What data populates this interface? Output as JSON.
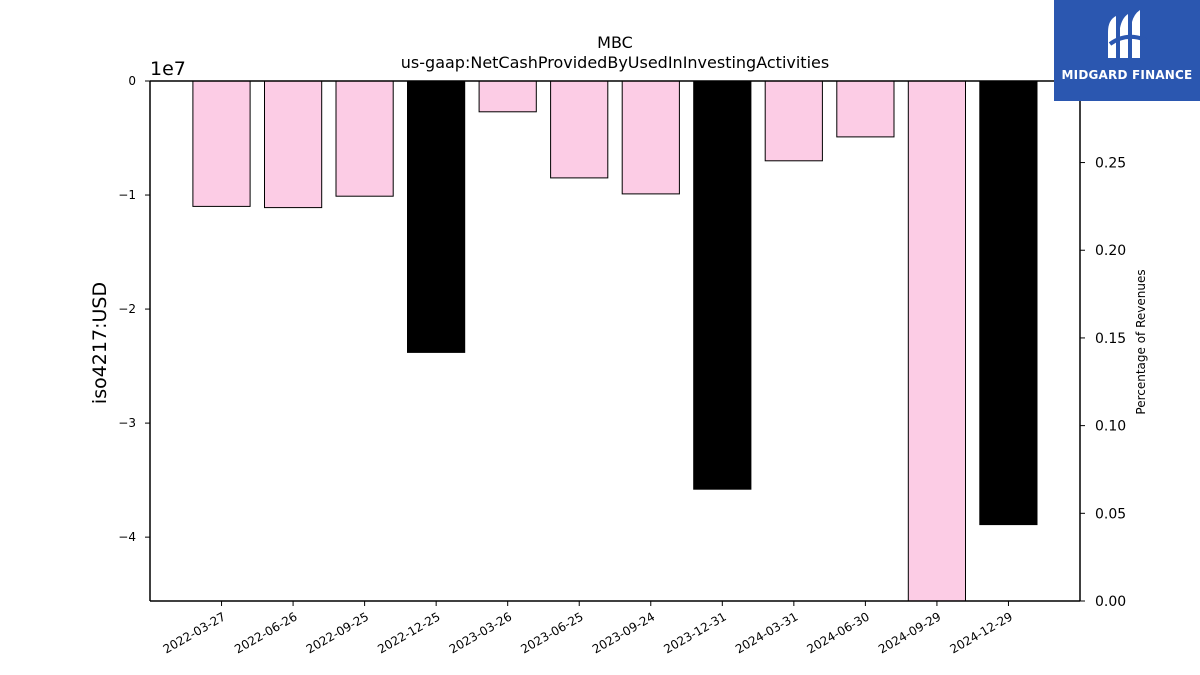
{
  "chart_data": {
    "type": "bar",
    "title": "MBC",
    "subtitle": "us-gaap:NetCashProvidedByUsedInInvestingActivities",
    "ylabel": "iso4217:USD",
    "y2label": "Percentage of Revenues",
    "y_offset_label": "1e7",
    "categories": [
      "2022-03-27",
      "2022-06-26",
      "2022-09-25",
      "2022-12-25",
      "2023-03-26",
      "2023-06-25",
      "2023-09-24",
      "2023-12-31",
      "2024-03-31",
      "2024-06-30",
      "2024-09-29",
      "2024-12-29"
    ],
    "values": [
      -11000000,
      -11100000,
      -10100000,
      -23800000,
      -2700000,
      -8500000,
      -9900000,
      -35800000,
      -7000000,
      -4900000,
      -46000000,
      -38900000
    ],
    "bar_colors": [
      "#fccce5",
      "#fccce5",
      "#fccce5",
      "#000000",
      "#fccce5",
      "#fccce5",
      "#fccce5",
      "#000000",
      "#fccce5",
      "#fccce5",
      "#fccce5",
      "#000000"
    ],
    "ylim": [
      -45600000,
      0
    ],
    "yticks": [
      0,
      -10000000,
      -20000000,
      -30000000,
      -40000000
    ],
    "ytick_labels": [
      "0",
      "−1",
      "−2",
      "−3",
      "−4"
    ],
    "y2lim": [
      0,
      0.2965
    ],
    "y2ticks": [
      0,
      0.05,
      0.1,
      0.15,
      0.2,
      0.25
    ],
    "y2tick_labels": [
      "0.00",
      "0.05",
      "0.10",
      "0.15",
      "0.20",
      "0.25"
    ],
    "grid": false,
    "legend": "none"
  },
  "brand": {
    "name": "MIDGARD FINANCE",
    "color": "#2b57b0",
    "icon": "midgard-logo-icon"
  }
}
